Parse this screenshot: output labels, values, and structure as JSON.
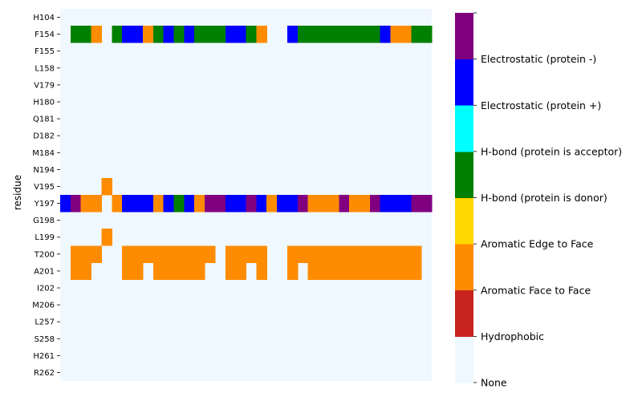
{
  "chart_data": {
    "type": "heatmap",
    "ylabel": "residue",
    "rows": [
      "H104",
      "F154",
      "F155",
      "L158",
      "V179",
      "H180",
      "Q181",
      "D182",
      "M184",
      "N194",
      "V195",
      "Y197",
      "G198",
      "L199",
      "T200",
      "A201",
      "I202",
      "M206",
      "L257",
      "S258",
      "H261",
      "R262"
    ],
    "n_cols": 36,
    "legend": [
      {
        "code": 0,
        "label": "None",
        "color": "#f0f8ff"
      },
      {
        "code": 1,
        "label": "Hydrophobic",
        "color": "#c8231f"
      },
      {
        "code": 2,
        "label": "Aromatic Face to Face",
        "color": "#ff8c00"
      },
      {
        "code": 3,
        "label": "Aromatic Edge to Face",
        "color": "#ffd700"
      },
      {
        "code": 4,
        "label": "H-bond (protein is donor)",
        "color": "#008000"
      },
      {
        "code": 5,
        "label": "H-bond (protein is acceptor)",
        "color": "#00ffff"
      },
      {
        "code": 6,
        "label": "Electrostatic (protein +)",
        "color": "#0000ff"
      },
      {
        "code": 7,
        "label": "Electrostatic (protein -)",
        "color": "#800080"
      }
    ],
    "colorbar_ticks": [
      "None",
      "Hydrophobic",
      "Aromatic Face to Face",
      "Aromatic Edge to Face",
      "H-bond (protein is donor)",
      "H-bond (protein is acceptor)",
      "Electrostatic (protein +)",
      "Electrostatic (protein -)",
      ""
    ],
    "values": {
      "F154": [
        0,
        4,
        4,
        2,
        0,
        4,
        6,
        6,
        2,
        4,
        6,
        4,
        6,
        4,
        4,
        4,
        6,
        6,
        4,
        2,
        0,
        0,
        6,
        4,
        4,
        4,
        4,
        4,
        4,
        4,
        4,
        6,
        2,
        2,
        4,
        4
      ],
      "V195": [
        0,
        0,
        0,
        0,
        2,
        0,
        0,
        0,
        0,
        0,
        0,
        0,
        0,
        0,
        0,
        0,
        0,
        0,
        0,
        0,
        0,
        0,
        0,
        0,
        0,
        0,
        0,
        0,
        0,
        0,
        0,
        0,
        0,
        0,
        0,
        0
      ],
      "Y197": [
        6,
        7,
        2,
        2,
        0,
        2,
        6,
        6,
        6,
        2,
        6,
        4,
        6,
        2,
        7,
        7,
        6,
        6,
        7,
        6,
        2,
        6,
        6,
        7,
        2,
        2,
        2,
        7,
        2,
        2,
        7,
        6,
        6,
        6,
        7,
        7
      ],
      "L199": [
        0,
        0,
        0,
        0,
        2,
        0,
        0,
        0,
        0,
        0,
        0,
        0,
        0,
        0,
        0,
        0,
        0,
        0,
        0,
        0,
        0,
        0,
        0,
        0,
        0,
        0,
        0,
        0,
        0,
        0,
        0,
        0,
        0,
        0,
        0,
        0
      ],
      "T200": [
        0,
        2,
        2,
        2,
        0,
        0,
        2,
        2,
        2,
        2,
        2,
        2,
        2,
        2,
        2,
        0,
        2,
        2,
        2,
        2,
        0,
        0,
        2,
        2,
        2,
        2,
        2,
        2,
        2,
        2,
        2,
        2,
        2,
        2,
        2,
        0
      ],
      "A201": [
        0,
        2,
        2,
        0,
        0,
        0,
        2,
        2,
        0,
        2,
        2,
        2,
        2,
        2,
        0,
        0,
        2,
        2,
        0,
        2,
        0,
        0,
        2,
        0,
        2,
        2,
        2,
        2,
        2,
        2,
        2,
        2,
        2,
        2,
        2,
        0
      ]
    }
  }
}
